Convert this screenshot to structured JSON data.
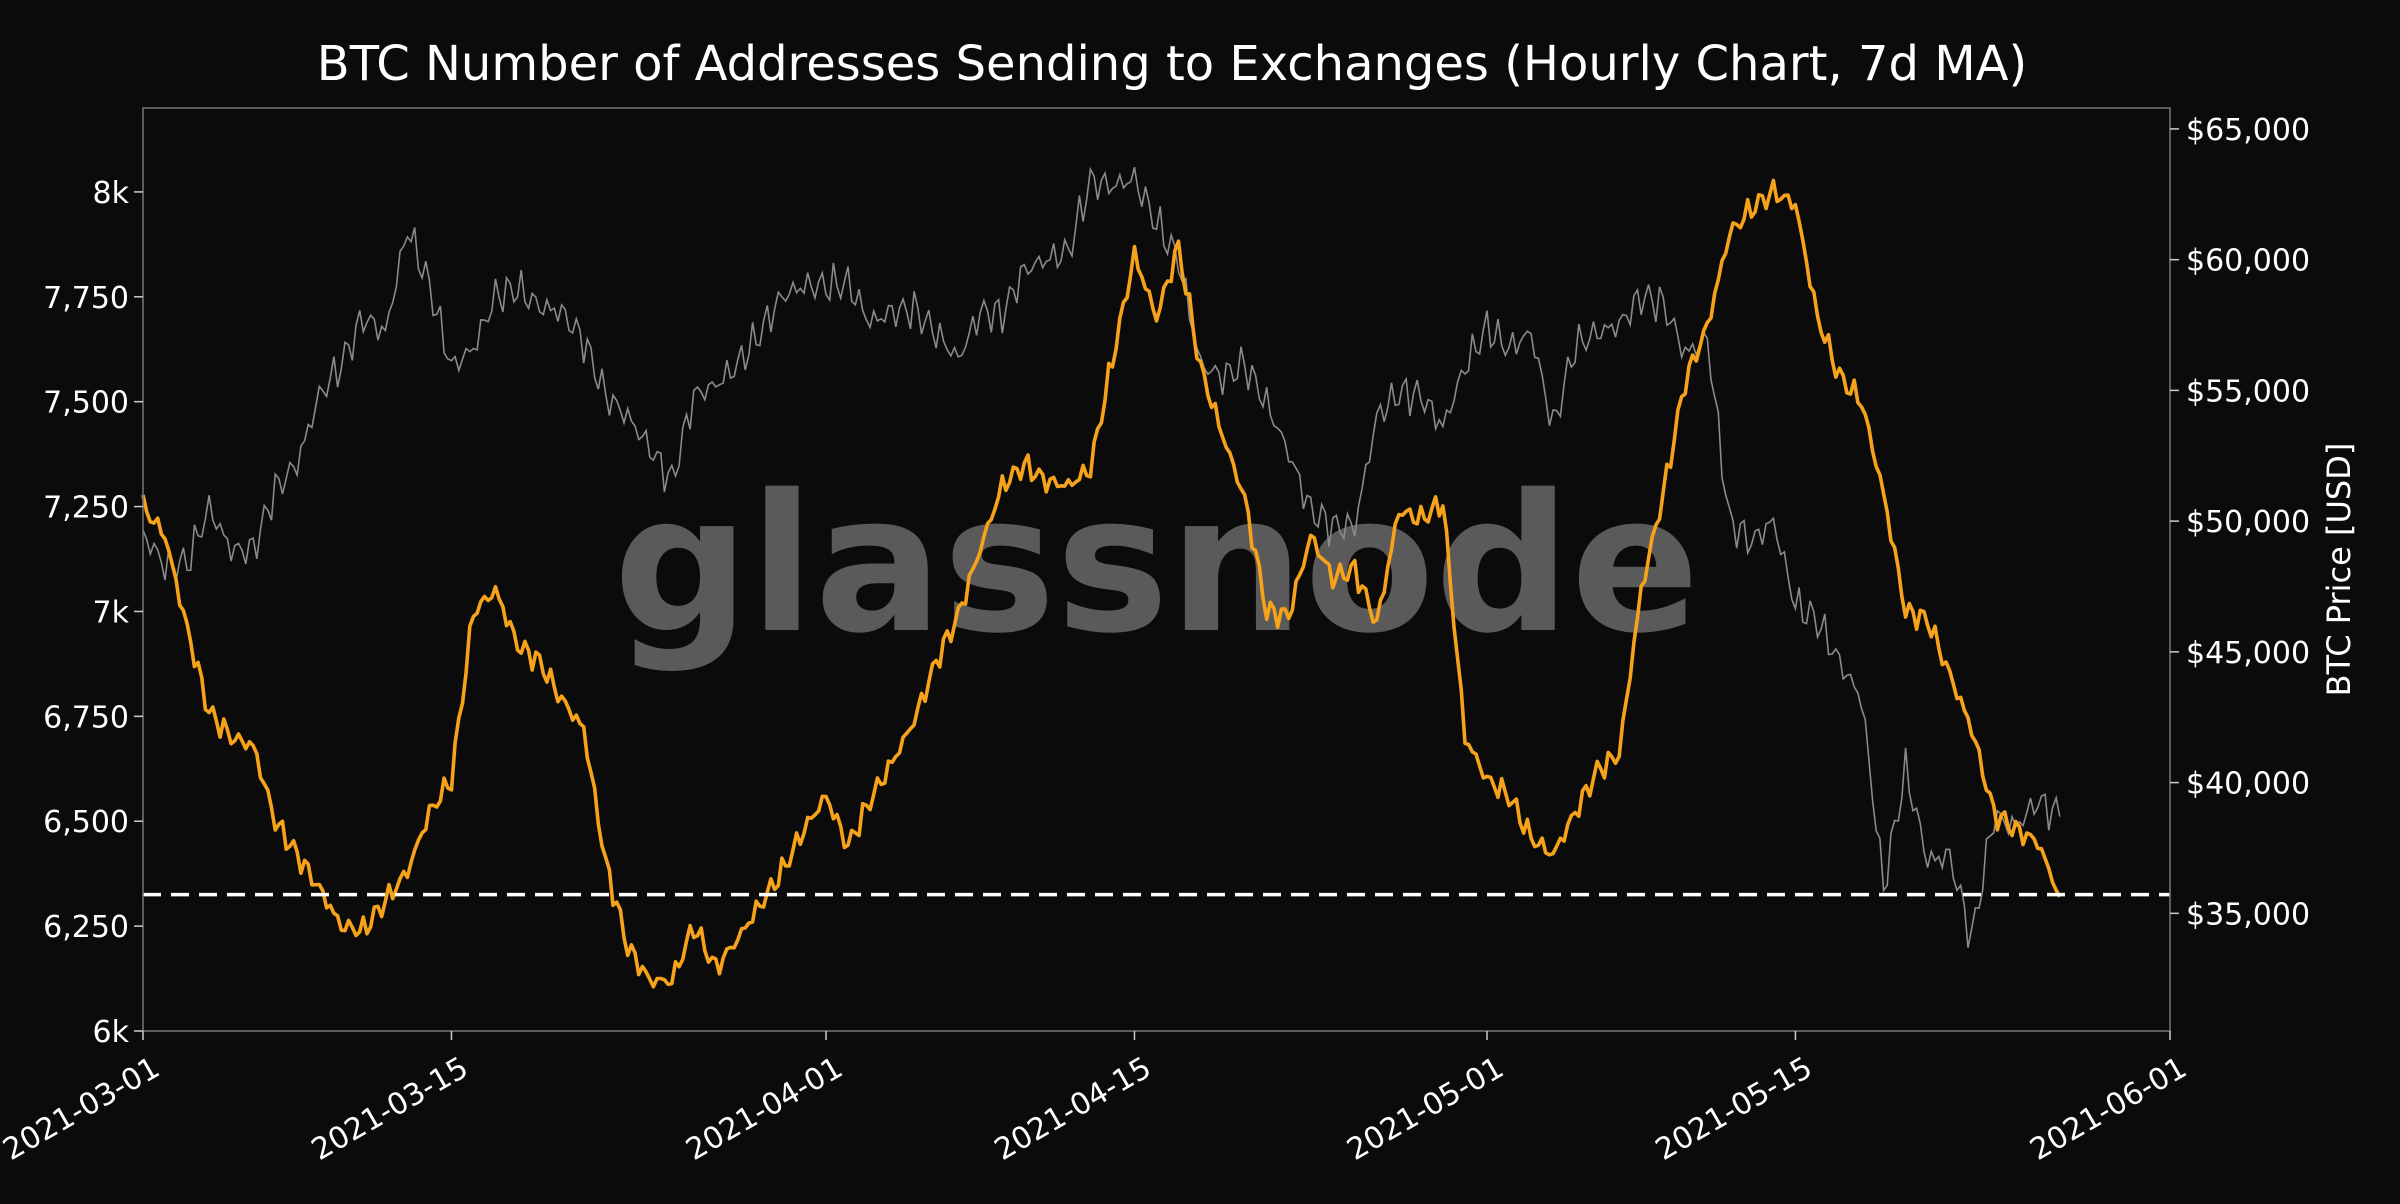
{
  "chart_data": {
    "type": "line",
    "title": "BTC Number of Addresses Sending to Exchanges (Hourly Chart, 7d MA)",
    "watermark": "glassnode",
    "left_axis": {
      "label": "",
      "ylim": [
        6000,
        8200
      ],
      "ticks": [
        6000,
        6250,
        6500,
        6750,
        7000,
        7250,
        7500,
        7750,
        8000
      ],
      "tick_labels": [
        "6k",
        "6,250",
        "6,500",
        "6,750",
        "7k",
        "7,250",
        "7,500",
        "7,750",
        "8k"
      ]
    },
    "right_axis": {
      "label": "BTC Price [USD]",
      "ylim": [
        30500,
        65800
      ],
      "ticks": [
        35000,
        40000,
        45000,
        50000,
        55000,
        60000,
        65000
      ],
      "tick_labels": [
        "$35,000",
        "$40,000",
        "$45,000",
        "$50,000",
        "$55,000",
        "$60,000",
        "$65,000"
      ]
    },
    "x_axis": {
      "label": "",
      "xlim": [
        "2021-03-01",
        "2021-06-01"
      ],
      "tick_labels": [
        "2021-03-01",
        "2021-03-15",
        "2021-04-01",
        "2021-04-15",
        "2021-05-01",
        "2021-05-15",
        "2021-06-01"
      ]
    },
    "grid": false,
    "legend": "none",
    "reference_line": {
      "axis": "left",
      "value": 6325,
      "style": "dashed",
      "color": "#ffffff"
    },
    "series": [
      {
        "axis": "left",
        "color": "#f7a21b",
        "x": [
          "2021-03-01",
          "2021-03-02",
          "2021-03-03",
          "2021-03-04",
          "2021-03-05",
          "2021-03-06",
          "2021-03-07",
          "2021-03-08",
          "2021-03-09",
          "2021-03-10",
          "2021-03-11",
          "2021-03-12",
          "2021-03-13",
          "2021-03-14",
          "2021-03-15",
          "2021-03-16",
          "2021-03-17",
          "2021-03-18",
          "2021-03-19",
          "2021-03-20",
          "2021-03-21",
          "2021-03-22",
          "2021-03-23",
          "2021-03-24",
          "2021-03-25",
          "2021-03-26",
          "2021-03-27",
          "2021-03-28",
          "2021-03-29",
          "2021-03-30",
          "2021-03-31",
          "2021-04-01",
          "2021-04-02",
          "2021-04-03",
          "2021-04-04",
          "2021-04-05",
          "2021-04-06",
          "2021-04-07",
          "2021-04-08",
          "2021-04-09",
          "2021-04-10",
          "2021-04-11",
          "2021-04-12",
          "2021-04-13",
          "2021-04-14",
          "2021-04-15",
          "2021-04-16",
          "2021-04-17",
          "2021-04-18",
          "2021-04-19",
          "2021-04-20",
          "2021-04-21",
          "2021-04-22",
          "2021-04-23",
          "2021-04-24",
          "2021-04-25",
          "2021-04-26",
          "2021-04-27",
          "2021-04-28",
          "2021-04-29",
          "2021-04-30",
          "2021-05-01",
          "2021-05-02",
          "2021-05-03",
          "2021-05-04",
          "2021-05-05",
          "2021-05-06",
          "2021-05-07",
          "2021-05-08",
          "2021-05-09",
          "2021-05-10",
          "2021-05-11",
          "2021-05-12",
          "2021-05-13",
          "2021-05-14",
          "2021-05-15",
          "2021-05-16",
          "2021-05-17",
          "2021-05-18",
          "2021-05-19",
          "2021-05-20",
          "2021-05-21",
          "2021-05-22",
          "2021-05-23",
          "2021-05-24",
          "2021-05-25",
          "2021-05-26",
          "2021-05-27"
        ],
        "values": [
          7250,
          7180,
          6960,
          6760,
          6700,
          6680,
          6500,
          6420,
          6340,
          6250,
          6240,
          6310,
          6380,
          6520,
          6600,
          7000,
          7050,
          6920,
          6880,
          6790,
          6720,
          6400,
          6200,
          6120,
          6120,
          6250,
          6150,
          6220,
          6300,
          6380,
          6480,
          6560,
          6440,
          6550,
          6640,
          6740,
          6880,
          6990,
          7150,
          7300,
          7350,
          7310,
          7300,
          7340,
          7600,
          7850,
          7700,
          7870,
          7580,
          7420,
          7270,
          7000,
          6990,
          7180,
          7080,
          7100,
          6970,
          7240,
          7220,
          7260,
          6700,
          6600,
          6560,
          6460,
          6420,
          6520,
          6620,
          6660,
          7050,
          7280,
          7550,
          7680,
          7900,
          7960,
          8000,
          7970,
          7700,
          7560,
          7500,
          7280,
          7000,
          6980,
          6850,
          6720,
          6520,
          6480,
          6450,
          6320
        ]
      },
      {
        "axis": "right",
        "color": "#8a8a8a",
        "x": [
          "2021-03-01",
          "2021-03-02",
          "2021-03-03",
          "2021-03-04",
          "2021-03-05",
          "2021-03-06",
          "2021-03-07",
          "2021-03-08",
          "2021-03-09",
          "2021-03-10",
          "2021-03-11",
          "2021-03-12",
          "2021-03-13",
          "2021-03-14",
          "2021-03-15",
          "2021-03-16",
          "2021-03-17",
          "2021-03-18",
          "2021-03-19",
          "2021-03-20",
          "2021-03-21",
          "2021-03-22",
          "2021-03-23",
          "2021-03-24",
          "2021-03-25",
          "2021-03-26",
          "2021-03-27",
          "2021-03-28",
          "2021-03-29",
          "2021-03-30",
          "2021-03-31",
          "2021-04-01",
          "2021-04-02",
          "2021-04-03",
          "2021-04-04",
          "2021-04-05",
          "2021-04-06",
          "2021-04-07",
          "2021-04-08",
          "2021-04-09",
          "2021-04-10",
          "2021-04-11",
          "2021-04-12",
          "2021-04-13",
          "2021-04-14",
          "2021-04-15",
          "2021-04-16",
          "2021-04-17",
          "2021-04-18",
          "2021-04-19",
          "2021-04-20",
          "2021-04-21",
          "2021-04-22",
          "2021-04-23",
          "2021-04-24",
          "2021-04-25",
          "2021-04-26",
          "2021-04-27",
          "2021-04-28",
          "2021-04-29",
          "2021-04-30",
          "2021-05-01",
          "2021-05-02",
          "2021-05-03",
          "2021-05-04",
          "2021-05-05",
          "2021-05-06",
          "2021-05-07",
          "2021-05-08",
          "2021-05-09",
          "2021-05-10",
          "2021-05-11",
          "2021-05-12",
          "2021-05-13",
          "2021-05-14",
          "2021-05-15",
          "2021-05-16",
          "2021-05-17",
          "2021-05-18",
          "2021-05-19",
          "2021-05-20",
          "2021-05-21",
          "2021-05-22",
          "2021-05-23",
          "2021-05-24",
          "2021-05-25",
          "2021-05-26",
          "2021-05-27"
        ],
        "values": [
          49500,
          48300,
          48400,
          50500,
          48900,
          48900,
          51200,
          52200,
          54800,
          56000,
          57800,
          57200,
          61200,
          59000,
          55900,
          56600,
          58600,
          58900,
          58200,
          58000,
          56900,
          54800,
          54000,
          52800,
          51500,
          54800,
          55200,
          56000,
          57200,
          58600,
          59000,
          59000,
          59100,
          57600,
          58000,
          58100,
          57200,
          56200,
          58000,
          57900,
          59600,
          60000,
          60300,
          63000,
          62800,
          63100,
          61400,
          60000,
          56000,
          55500,
          56000,
          54500,
          52600,
          50400,
          49800,
          49800,
          54000,
          54900,
          54800,
          53600,
          55900,
          57400,
          56600,
          57200,
          53600,
          56700,
          57200,
          57500,
          58600,
          58300,
          56400,
          57000,
          50000,
          49200,
          50000,
          46800,
          46200,
          44600,
          43200,
          36000,
          40500,
          37000,
          37200,
          34000,
          38700,
          38300,
          39300,
          38700
        ]
      }
    ]
  }
}
